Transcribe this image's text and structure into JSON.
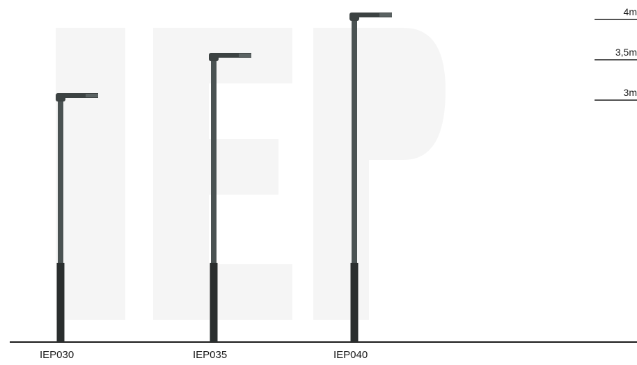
{
  "models": [
    {
      "id": "IEP030",
      "height_m": 3
    },
    {
      "id": "IEP035",
      "height_m": 3.5
    },
    {
      "id": "IEP040",
      "height_m": 4
    }
  ],
  "height_markers": [
    {
      "label": "4m",
      "height_m": 4
    },
    {
      "label": "3,5m",
      "height_m": 3.5
    },
    {
      "label": "3m",
      "height_m": 3
    }
  ],
  "colors": {
    "pole_upper": "#4a5252",
    "pole_lower": "#2a2e2e",
    "luminaire": "#3c4242",
    "ground": "#1a1a1a",
    "text": "#1a1a1a"
  }
}
